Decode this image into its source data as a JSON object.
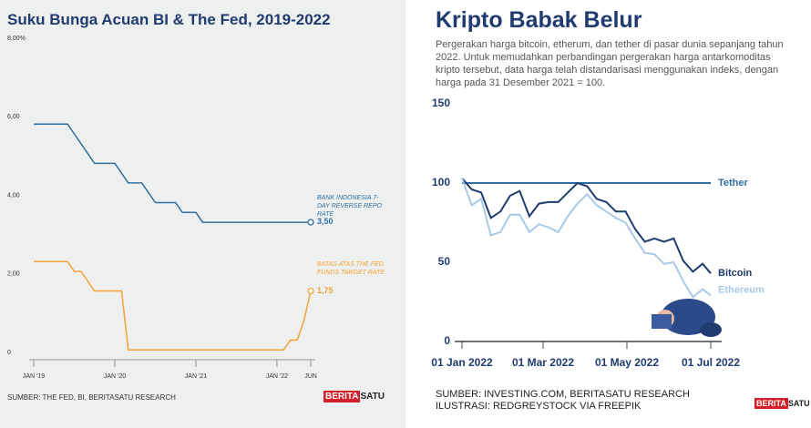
{
  "chart_data": [
    {
      "type": "line",
      "title": "Suku Bunga Acuan BI & The Fed, 2019-2022",
      "xlim": [
        "2019-01",
        "2022-06"
      ],
      "xticks": [
        {
          "value": "2019-01",
          "label": "JAN '19"
        },
        {
          "value": "2020-01",
          "label": "JAN '20"
        },
        {
          "value": "2021-01",
          "label": "JAN '21"
        },
        {
          "value": "2022-01",
          "label": "JAN '22"
        },
        {
          "value": "2022-06",
          "label": "JUN"
        }
      ],
      "ylim": [
        0,
        8
      ],
      "yticks": [
        {
          "value": 0,
          "label": "0"
        },
        {
          "value": 2,
          "label": "2,00"
        },
        {
          "value": 4,
          "label": "4,00"
        },
        {
          "value": 6,
          "label": "6,00"
        },
        {
          "value": 8,
          "label": "8,00%"
        }
      ],
      "series": [
        {
          "name": "BANK INDONESIA 7-DAY REVERSE REPO RATE",
          "color": "#2f6f9f",
          "x": [
            "2019-01",
            "2019-06",
            "2019-07",
            "2019-08",
            "2019-09",
            "2019-10",
            "2020-01",
            "2020-02",
            "2020-03",
            "2020-05",
            "2020-06",
            "2020-07",
            "2020-10",
            "2020-11",
            "2021-01",
            "2021-02",
            "2022-06"
          ],
          "values": [
            6,
            6,
            5.75,
            5.5,
            5.25,
            5,
            5,
            4.75,
            4.5,
            4.5,
            4.25,
            4,
            4,
            3.75,
            3.75,
            3.5,
            3.5
          ],
          "value_labels": [
            null,
            null,
            null,
            null,
            null,
            null,
            null,
            null,
            null,
            null,
            null,
            null,
            null,
            null,
            null,
            null,
            "3,50"
          ]
        },
        {
          "name": "BATAS ATAS THE FED FUNDS TARGET RATE",
          "color": "#f3a234",
          "x": [
            "2019-01",
            "2019-06",
            "2019-07",
            "2019-08",
            "2019-10",
            "2020-02",
            "2020-03",
            "2022-02",
            "2022-03",
            "2022-04",
            "2022-05",
            "2022-06"
          ],
          "values": [
            2.5,
            2.5,
            2.25,
            2.25,
            1.75,
            1.75,
            0.25,
            0.25,
            0.5,
            0.5,
            1,
            1.75
          ],
          "value_labels": [
            null,
            null,
            null,
            null,
            null,
            null,
            null,
            null,
            null,
            null,
            null,
            "1,75"
          ]
        }
      ],
      "source": "SUMBER: THE FED, BI, BERITASATU RESEARCH"
    },
    {
      "type": "line",
      "title": "Kripto Babak Belur",
      "subtitle": "Pergerakan harga bitcoin, etherum, dan tether di pasar dunia sepanjang tahun 2022. Untuk memudahkan perbandingan pergerakan harga antarkomoditas kripto tersebut, data harga telah distandarisasi menggunakan indeks, dengan harga pada 31 Desember 2021 = 100.",
      "xlim": [
        "2022-01-01",
        "2022-07-01"
      ],
      "xticks": [
        {
          "value": "2022-01-01",
          "label": "01 Jan 2022"
        },
        {
          "value": "2022-03-01",
          "label": "01 Mar 2022"
        },
        {
          "value": "2022-05-01",
          "label": "01 May 2022"
        },
        {
          "value": "2022-07-01",
          "label": "01 Jul 2022"
        }
      ],
      "ylim": [
        0,
        150
      ],
      "yticks": [
        0,
        50,
        100,
        150
      ],
      "x": [
        "2022-01-01",
        "2022-01-08",
        "2022-01-15",
        "2022-01-22",
        "2022-01-29",
        "2022-02-05",
        "2022-02-12",
        "2022-02-19",
        "2022-02-26",
        "2022-03-05",
        "2022-03-12",
        "2022-03-19",
        "2022-03-26",
        "2022-04-02",
        "2022-04-09",
        "2022-04-16",
        "2022-04-23",
        "2022-04-30",
        "2022-05-07",
        "2022-05-14",
        "2022-05-21",
        "2022-05-28",
        "2022-06-04",
        "2022-06-11",
        "2022-06-18",
        "2022-06-25",
        "2022-07-01"
      ],
      "series": [
        {
          "name": "Tether",
          "color": "#2f6f9f",
          "values": [
            100,
            100,
            100,
            100,
            100,
            100,
            100,
            100,
            100,
            100,
            100,
            100,
            100,
            100,
            100,
            100,
            100,
            100,
            100,
            100,
            100,
            100,
            100,
            100,
            100,
            100,
            100
          ]
        },
        {
          "name": "Bitcoin",
          "color": "#1f3b6f",
          "values": [
            103,
            96,
            94,
            78,
            82,
            92,
            95,
            79,
            87,
            88,
            88,
            94,
            100,
            98,
            90,
            88,
            82,
            82,
            71,
            63,
            65,
            63,
            65,
            51,
            44,
            49,
            43
          ]
        },
        {
          "name": "Ethereum",
          "color": "#a9c9e7",
          "values": [
            103,
            86,
            90,
            67,
            69,
            80,
            80,
            69,
            74,
            72,
            69,
            79,
            87,
            93,
            86,
            82,
            78,
            75,
            65,
            56,
            55,
            49,
            50,
            38,
            28,
            33,
            29
          ]
        }
      ],
      "source": [
        "SUMBER: INVESTING.COM, BERITASATU RESEARCH",
        "ILUSTRASI: REDGREYSTOCK VIA FREEPIK"
      ]
    }
  ],
  "logo": [
    "BERITA",
    "SATU"
  ]
}
